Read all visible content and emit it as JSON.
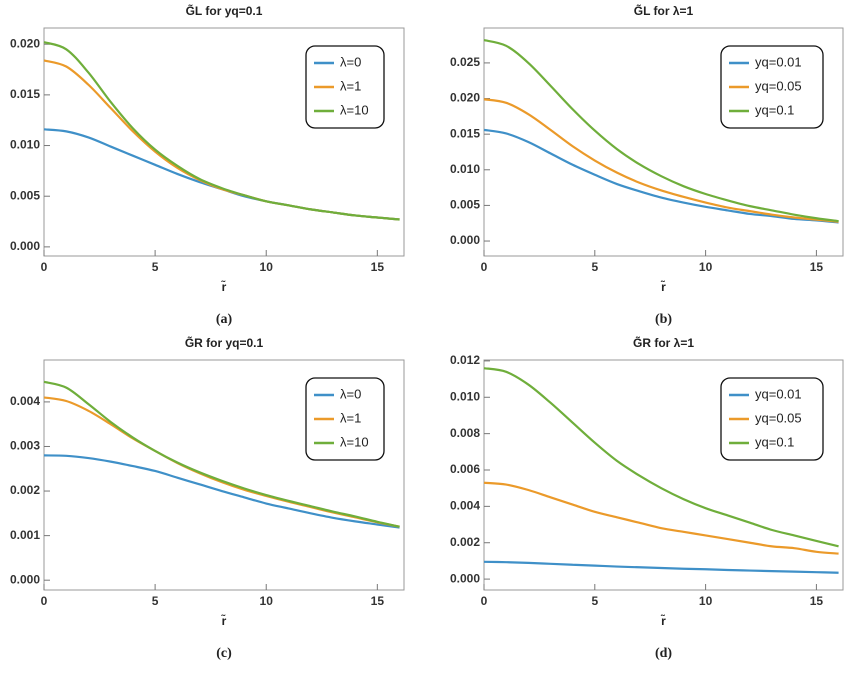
{
  "chart_data": [
    {
      "type": "line",
      "title": "G̃L for yq=0.1",
      "caption": "(a)",
      "xlabel": "r̃",
      "x": [
        0,
        1,
        2,
        3,
        4,
        5,
        6,
        7,
        8,
        9,
        10,
        11,
        12,
        13,
        14,
        15,
        16
      ],
      "xlim": [
        0,
        16.2
      ],
      "xticks": [
        0,
        5,
        10,
        15
      ],
      "ylim": [
        -0.0009,
        0.0216
      ],
      "yticks": [
        {
          "value": 0,
          "label": "0.000"
        },
        0.005,
        {
          "value": 0.01,
          "label": "0.010"
        },
        0.015,
        {
          "value": 0.02,
          "label": "0.020"
        }
      ],
      "legend": "top-right",
      "series": [
        {
          "name": "λ=0",
          "color": "#3f90c8",
          "values": [
            0.0116,
            0.0114,
            0.0108,
            0.0099,
            0.009,
            0.0081,
            0.0072,
            0.0064,
            0.0057,
            0.005,
            0.0045,
            0.0041,
            0.0037,
            0.0034,
            0.0031,
            0.0029,
            0.0027
          ]
        },
        {
          "name": "λ=1",
          "color": "#eb9a2a",
          "values": [
            0.0184,
            0.0178,
            0.016,
            0.0137,
            0.0114,
            0.0094,
            0.0078,
            0.0066,
            0.0057,
            0.0051,
            0.0045,
            0.0041,
            0.0037,
            0.0034,
            0.0031,
            0.0029,
            0.0027
          ]
        },
        {
          "name": "λ=10",
          "color": "#6fae3b",
          "values": [
            0.0202,
            0.0195,
            0.0172,
            0.0143,
            0.0117,
            0.0096,
            0.008,
            0.0067,
            0.0058,
            0.0051,
            0.0045,
            0.0041,
            0.0037,
            0.0034,
            0.0031,
            0.0029,
            0.0027
          ]
        }
      ]
    },
    {
      "type": "line",
      "title": "G̃L for λ=1",
      "caption": "(b)",
      "xlabel": "r̃",
      "x": [
        0,
        1,
        2,
        3,
        4,
        5,
        6,
        7,
        8,
        9,
        10,
        11,
        12,
        13,
        14,
        15,
        16
      ],
      "xlim": [
        0,
        16.2
      ],
      "xticks": [
        0,
        5,
        10,
        15
      ],
      "ylim": [
        -0.0021,
        0.0299
      ],
      "yticks": [
        {
          "value": 0,
          "label": "0.000"
        },
        0.005,
        {
          "value": 0.01,
          "label": "0.010"
        },
        0.015,
        {
          "value": 0.02,
          "label": "0.020"
        },
        0.025
      ],
      "legend": "top-right",
      "series": [
        {
          "name": "yq=0.01",
          "color": "#3f90c8",
          "values": [
            0.0156,
            0.0151,
            0.0139,
            0.0123,
            0.0107,
            0.0093,
            0.008,
            0.007,
            0.0061,
            0.0054,
            0.0048,
            0.0043,
            0.0038,
            0.0035,
            0.0031,
            0.0029,
            0.0026
          ]
        },
        {
          "name": "yq=0.05",
          "color": "#eb9a2a",
          "values": [
            0.0199,
            0.0194,
            0.0178,
            0.0156,
            0.0133,
            0.0113,
            0.0096,
            0.0082,
            0.0071,
            0.0062,
            0.0054,
            0.0047,
            0.0042,
            0.0037,
            0.0033,
            0.003,
            0.0027
          ]
        },
        {
          "name": "yq=0.1",
          "color": "#6fae3b",
          "values": [
            0.0282,
            0.0274,
            0.025,
            0.0218,
            0.0185,
            0.0155,
            0.0129,
            0.0108,
            0.0091,
            0.0077,
            0.0066,
            0.0057,
            0.0049,
            0.0043,
            0.0037,
            0.0032,
            0.0028
          ]
        }
      ]
    },
    {
      "type": "line",
      "title": "G̃R for yq=0.1",
      "caption": "(c)",
      "xlabel": "r̃",
      "x": [
        0,
        1,
        2,
        3,
        4,
        5,
        6,
        7,
        8,
        9,
        10,
        11,
        12,
        13,
        14,
        15,
        16
      ],
      "xlim": [
        0,
        16.2
      ],
      "xticks": [
        0,
        5,
        10,
        15
      ],
      "ylim": [
        -0.00022,
        0.00494
      ],
      "yticks": [
        {
          "value": 0,
          "label": "0.000"
        },
        0.001,
        0.002,
        0.003,
        0.004
      ],
      "legend": "top-right",
      "series": [
        {
          "name": "λ=0",
          "color": "#3f90c8",
          "values": [
            0.0028,
            0.00279,
            0.00274,
            0.00266,
            0.00256,
            0.00245,
            0.0023,
            0.00215,
            0.002,
            0.00186,
            0.00172,
            0.00161,
            0.0015,
            0.0014,
            0.00132,
            0.00125,
            0.00118
          ]
        },
        {
          "name": "λ=1",
          "color": "#eb9a2a",
          "values": [
            0.0041,
            0.00402,
            0.0038,
            0.0035,
            0.00318,
            0.0029,
            0.00263,
            0.0024,
            0.0022,
            0.00203,
            0.00189,
            0.00176,
            0.00164,
            0.00152,
            0.00141,
            0.0013,
            0.0012
          ]
        },
        {
          "name": "λ=10",
          "color": "#6fae3b",
          "values": [
            0.00445,
            0.00432,
            0.00395,
            0.00355,
            0.0032,
            0.0029,
            0.00264,
            0.00242,
            0.00223,
            0.00206,
            0.00191,
            0.00178,
            0.00166,
            0.00154,
            0.00143,
            0.00131,
            0.0012
          ]
        }
      ]
    },
    {
      "type": "line",
      "title": "G̃R for λ=1",
      "caption": "(d)",
      "xlabel": "r̃",
      "x": [
        0,
        1,
        2,
        3,
        4,
        5,
        6,
        7,
        8,
        9,
        10,
        11,
        12,
        13,
        14,
        15,
        16
      ],
      "xlim": [
        0,
        16.2
      ],
      "xticks": [
        0,
        5,
        10,
        15
      ],
      "ylim": [
        -0.0006,
        0.01205
      ],
      "yticks": [
        {
          "value": 0,
          "label": "0.000"
        },
        0.002,
        0.004,
        0.006,
        0.008,
        {
          "value": 0.01,
          "label": "0.010"
        },
        0.012
      ],
      "legend": "top-right",
      "series": [
        {
          "name": "yq=0.01",
          "color": "#3f90c8",
          "values": [
            0.00095,
            0.00093,
            0.00089,
            0.00084,
            0.00079,
            0.00074,
            0.00069,
            0.00065,
            0.00061,
            0.00057,
            0.00054,
            0.0005,
            0.00047,
            0.00044,
            0.00041,
            0.00038,
            0.00035
          ]
        },
        {
          "name": "yq=0.05",
          "color": "#eb9a2a",
          "values": [
            0.0053,
            0.0052,
            0.0049,
            0.0045,
            0.0041,
            0.0037,
            0.0034,
            0.0031,
            0.0028,
            0.0026,
            0.0024,
            0.0022,
            0.002,
            0.0018,
            0.0017,
            0.0015,
            0.0014
          ]
        },
        {
          "name": "yq=0.1",
          "color": "#6fae3b",
          "values": [
            0.0116,
            0.0114,
            0.0107,
            0.0097,
            0.0086,
            0.0075,
            0.0065,
            0.0057,
            0.005,
            0.0044,
            0.0039,
            0.0035,
            0.0031,
            0.0027,
            0.0024,
            0.0021,
            0.0018
          ]
        }
      ]
    }
  ]
}
